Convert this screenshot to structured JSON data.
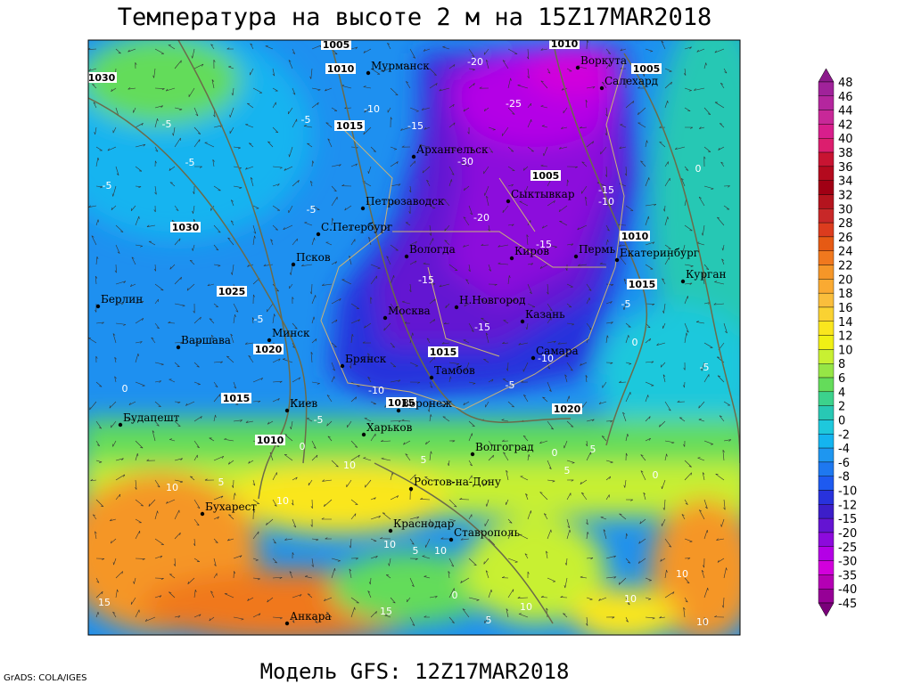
{
  "title": "Температура на высоте 2 м на 15Z17MAR2018",
  "footer": "Модель GFS: 12Z17MAR2018",
  "credit": "GrADS: COLA/IGES",
  "colorbar": {
    "labels": [
      48,
      46,
      44,
      42,
      40,
      38,
      36,
      34,
      32,
      30,
      28,
      26,
      24,
      22,
      20,
      18,
      16,
      14,
      12,
      10,
      8,
      6,
      4,
      2,
      0,
      -2,
      -4,
      -6,
      -8,
      -10,
      -12,
      -15,
      -20,
      -25,
      -30,
      -35,
      -40,
      -45
    ],
    "colors": [
      "#8c1a8c",
      "#a0229a",
      "#b4269e",
      "#c82898",
      "#d81e8c",
      "#dc1e6e",
      "#c81432",
      "#b40a1e",
      "#a00014",
      "#b4141e",
      "#c82828",
      "#dc3c1e",
      "#e65a14",
      "#f0781e",
      "#f59628",
      "#faaa32",
      "#fabe3c",
      "#fad232",
      "#fae61e",
      "#f0f014",
      "#c8f032",
      "#96e646",
      "#64dc5a",
      "#3cd28c",
      "#28c8b4",
      "#1ec8dc",
      "#14b4f0",
      "#1e96f0",
      "#1e78f0",
      "#1e5af0",
      "#2832dc",
      "#3c1ec8",
      "#6414d2",
      "#8c0adc",
      "#b400e6",
      "#d200dc",
      "#b400b4",
      "#960096",
      "#7a007a"
    ]
  },
  "cities": [
    "Мурманск",
    "Архангельск",
    "Петрозаводск",
    "С.Петербург",
    "Псков",
    "Вологда",
    "Сыктывкар",
    "Киров",
    "Пермь",
    "Екатеринбург",
    "Курган",
    "Салехард",
    "Воркута",
    "Минск",
    "Москва",
    "Н.Новгород",
    "Казань",
    "Самара",
    "Брянск",
    "Тамбов",
    "Воронеж",
    "Киев",
    "Харьков",
    "Волгоград",
    "Ростов-на-Дону",
    "Краснодар",
    "Ставрополь",
    "Будапешт",
    "Варшава",
    "Берлин",
    "Бухарест",
    "Анкара"
  ],
  "isobar_labels": [
    1005,
    1010,
    1015,
    1030,
    1030,
    1025,
    1020,
    1015,
    1010,
    1015,
    1015,
    1020,
    1005,
    1010,
    1015,
    1005,
    1010
  ],
  "isotherm_labels": [
    -20,
    -25,
    -30,
    -20,
    -15,
    -15,
    -15,
    -10,
    -5,
    -10,
    -5,
    -5,
    -5,
    -5,
    -5,
    -5,
    -5,
    -10,
    -15,
    -15,
    -10,
    -5,
    -5,
    0,
    0,
    0,
    0,
    5,
    10,
    5,
    10,
    5,
    10,
    0,
    5,
    10,
    5,
    10,
    10,
    10,
    10,
    5,
    10,
    15,
    15,
    0,
    0
  ]
}
